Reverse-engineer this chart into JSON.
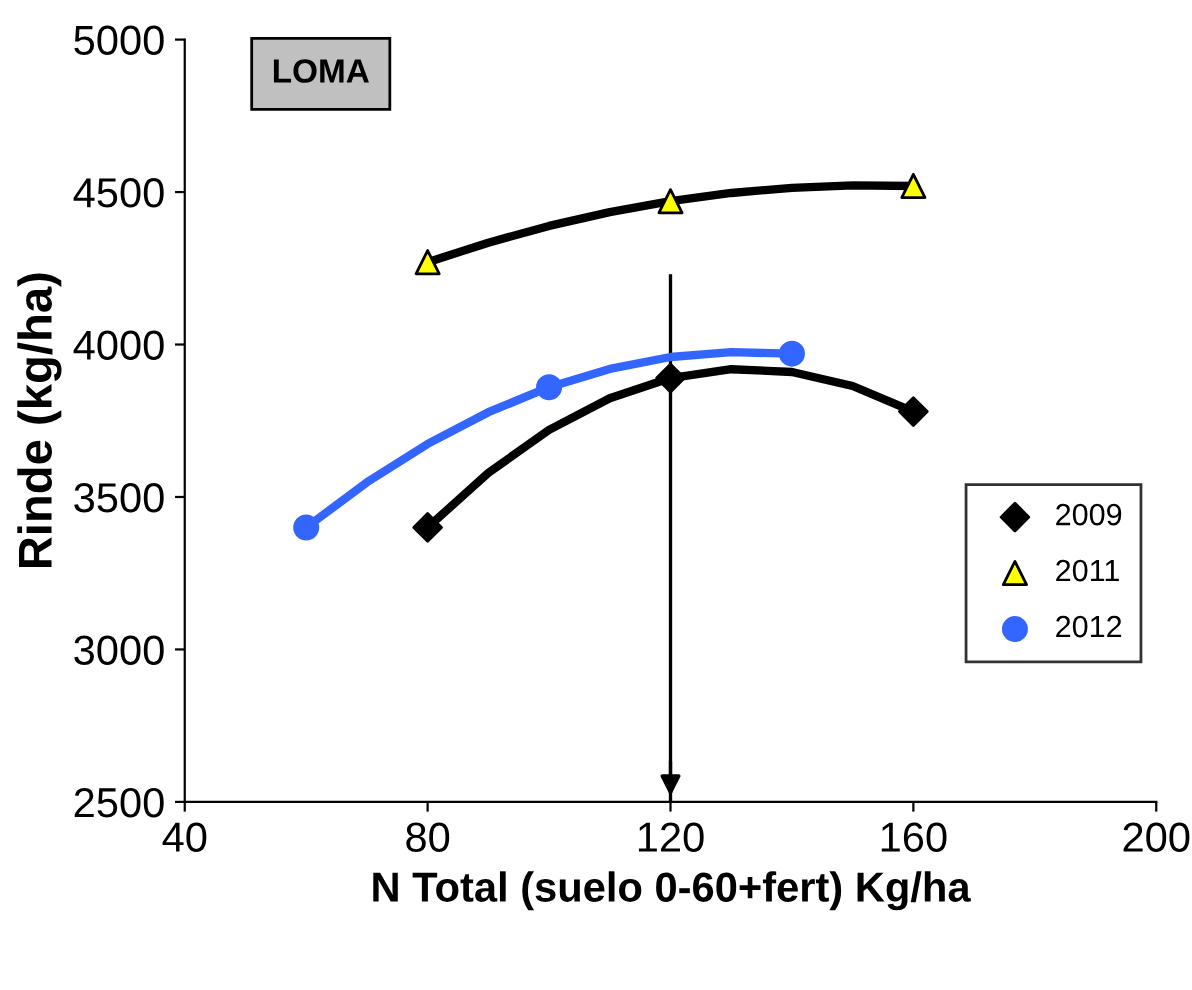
{
  "chart_data": {
    "type": "scatter",
    "title": "LOMA",
    "xlabel": "N Total (suelo 0-60+fert) Kg/ha",
    "ylabel": "Rinde (kg/ha)",
    "xlim": [
      40,
      200
    ],
    "xticks": [
      40,
      80,
      120,
      160,
      200
    ],
    "ylim": [
      2500,
      5000
    ],
    "yticks": [
      2500,
      3000,
      3500,
      4000,
      4500,
      5000
    ],
    "grid": false,
    "legend": "right",
    "ref_lines": [
      {
        "axis": "x",
        "value": 120,
        "color": "#000000"
      }
    ],
    "series": [
      {
        "type": "line",
        "color": "#000000",
        "marker": "none",
        "x": [
          80,
          90,
          100,
          110,
          120,
          130,
          140,
          150,
          160
        ],
        "values": [
          3400,
          3579,
          3720,
          3824,
          3890,
          3919,
          3910,
          3864,
          3780
        ]
      },
      {
        "type": "line",
        "color": "#000000",
        "marker": "none",
        "x": [
          80,
          90,
          100,
          110,
          120,
          130,
          140,
          150,
          160
        ],
        "values": [
          4270,
          4334,
          4389,
          4434,
          4470,
          4497,
          4514,
          4522,
          4520
        ]
      },
      {
        "type": "line",
        "color": "#3366ff",
        "marker": "none",
        "x": [
          60,
          70,
          80,
          90,
          100,
          110,
          120,
          130,
          140
        ],
        "values": [
          3400,
          3548,
          3674,
          3778,
          3860,
          3920,
          3959,
          3975,
          3970
        ]
      },
      {
        "name": "2009",
        "color": "#000000",
        "marker": "diamond",
        "x": [
          80,
          120,
          160
        ],
        "values": [
          3400,
          3890,
          3780
        ]
      },
      {
        "name": "2011",
        "color": "#ffff00",
        "marker": "triangle",
        "x": [
          80,
          120,
          160
        ],
        "values": [
          4270,
          4470,
          4520
        ]
      },
      {
        "name": "2012",
        "color": "#3366ff",
        "marker": "circle",
        "x": [
          60,
          100,
          140
        ],
        "values": [
          3400,
          3860,
          3970
        ]
      }
    ]
  }
}
